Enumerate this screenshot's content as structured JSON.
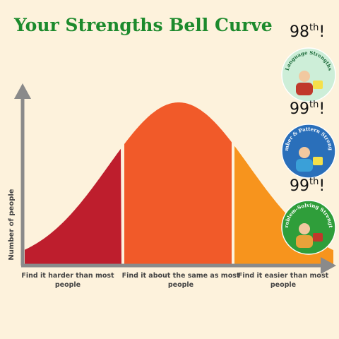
{
  "title": "Your Strengths Bell Curve",
  "y_axis_label": "Number of people",
  "regions": [
    {
      "label": "Find it harder than most people",
      "lines": [
        "Find it harder than most",
        "people"
      ]
    },
    {
      "label": "Find it about the same as most people",
      "lines": [
        "Find it about the same as most",
        "people"
      ]
    },
    {
      "label": "Find it easier than most people",
      "lines": [
        "Find it easier than most",
        "people"
      ]
    }
  ],
  "badges": [
    {
      "rank": "98",
      "suffix": "th",
      "mark": "!",
      "name": "Language Strengths"
    },
    {
      "rank": "99",
      "suffix": "th",
      "mark": "!",
      "name": "Number & Pattern Strengths"
    },
    {
      "rank": "99",
      "suffix": "th",
      "mark": "!",
      "name": "Problem-Solving Strength"
    }
  ]
}
